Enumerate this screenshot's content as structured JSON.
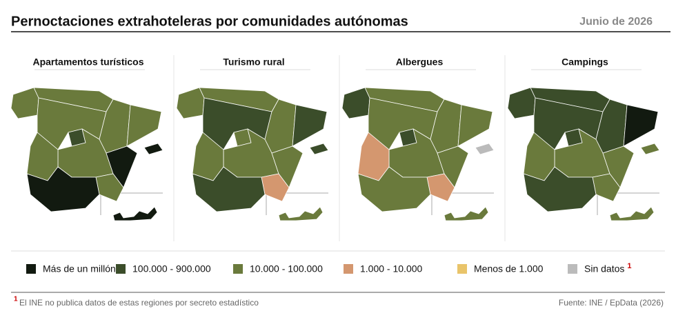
{
  "header": {
    "title": "Pernoctaciones extrahoteleras por comunidades autónomas",
    "date": "Junio de 2026"
  },
  "maps": [
    {
      "title": "Apartamentos turísticos"
    },
    {
      "title": "Turismo rural"
    },
    {
      "title": "Albergues"
    },
    {
      "title": "Campings"
    }
  ],
  "legend": [
    {
      "label": "Más de un millón",
      "color": "#121a10"
    },
    {
      "label": "100.000 - 900.000",
      "color": "#3b4d2a"
    },
    {
      "label": "10.000 - 100.000",
      "color": "#6a7a3c"
    },
    {
      "label": "1.000 - 10.000",
      "color": "#d4976f"
    },
    {
      "label": "Menos de 1.000",
      "color": "#e9c46a"
    },
    {
      "label": "Sin datos",
      "color": "#bbbbbb",
      "note": "1"
    }
  ],
  "footnote": {
    "mark": "1",
    "text": "El INE no publica datos de estas regiones por secreto estadístico"
  },
  "source": "Fuente: INE / EpData (2026)"
}
